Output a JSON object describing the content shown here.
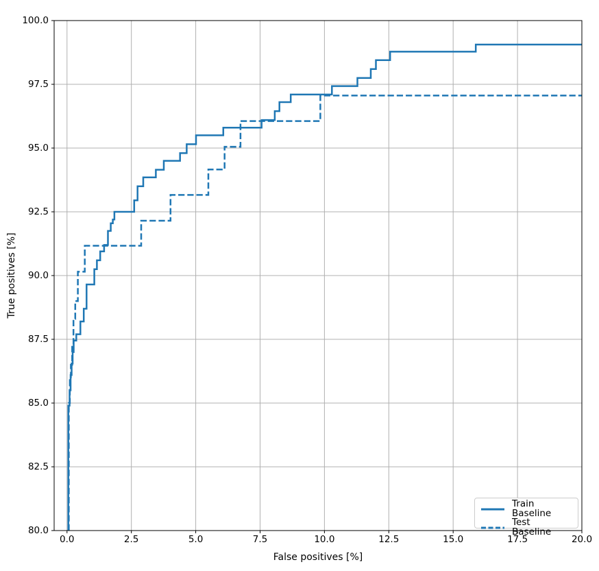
{
  "chart_data": {
    "type": "line",
    "subtype": "step-roc-curve",
    "title": "",
    "xlabel": "False positives [%]",
    "ylabel": "True positives [%]",
    "xlim": [
      -0.5,
      20
    ],
    "ylim": [
      80,
      100
    ],
    "grid": true,
    "grid_color": "#b0b0b0",
    "axis_color": "#000000",
    "line_color": "#1f77b4",
    "background_color": "#ffffff",
    "x_ticks": {
      "values": [
        0,
        2.5,
        5,
        7.5,
        10,
        12.5,
        15,
        17.5,
        20
      ],
      "labels": [
        "0.0",
        "2.5",
        "5.0",
        "7.5",
        "10.0",
        "12.5",
        "15.0",
        "17.5",
        "20.0"
      ]
    },
    "y_ticks": {
      "values": [
        80,
        82.5,
        85,
        87.5,
        90,
        92.5,
        95,
        97.5,
        100
      ],
      "labels": [
        "80.0",
        "82.5",
        "85.0",
        "87.5",
        "90.0",
        "92.5",
        "95.0",
        "97.5",
        "100.0"
      ]
    },
    "legend": {
      "position": "lower right",
      "border_color": "#cccccc"
    },
    "series": [
      {
        "name": "Train Baseline",
        "style": "solid",
        "color": "#1f77b4",
        "line_width": 2.5,
        "dash": null,
        "points": [
          [
            0.05,
            80.0
          ],
          [
            0.05,
            84.9
          ],
          [
            0.1,
            84.9
          ],
          [
            0.1,
            85.5
          ],
          [
            0.14,
            85.5
          ],
          [
            0.14,
            86.1
          ],
          [
            0.18,
            86.1
          ],
          [
            0.18,
            86.55
          ],
          [
            0.22,
            86.55
          ],
          [
            0.22,
            87.0
          ],
          [
            0.26,
            87.0
          ],
          [
            0.26,
            87.45
          ],
          [
            0.36,
            87.45
          ],
          [
            0.36,
            87.7
          ],
          [
            0.52,
            87.7
          ],
          [
            0.52,
            88.2
          ],
          [
            0.65,
            88.2
          ],
          [
            0.65,
            88.7
          ],
          [
            0.76,
            88.7
          ],
          [
            0.76,
            89.65
          ],
          [
            1.06,
            89.65
          ],
          [
            1.06,
            90.25
          ],
          [
            1.16,
            90.25
          ],
          [
            1.16,
            90.6
          ],
          [
            1.29,
            90.6
          ],
          [
            1.29,
            90.95
          ],
          [
            1.44,
            90.95
          ],
          [
            1.44,
            91.2
          ],
          [
            1.59,
            91.2
          ],
          [
            1.59,
            91.75
          ],
          [
            1.7,
            91.75
          ],
          [
            1.7,
            92.05
          ],
          [
            1.78,
            92.05
          ],
          [
            1.78,
            92.2
          ],
          [
            1.84,
            92.2
          ],
          [
            1.84,
            92.5
          ],
          [
            2.61,
            92.5
          ],
          [
            2.61,
            92.95
          ],
          [
            2.74,
            92.95
          ],
          [
            2.74,
            93.5
          ],
          [
            2.96,
            93.5
          ],
          [
            2.96,
            93.85
          ],
          [
            3.45,
            93.85
          ],
          [
            3.45,
            94.15
          ],
          [
            3.76,
            94.15
          ],
          [
            3.76,
            94.5
          ],
          [
            4.39,
            94.5
          ],
          [
            4.39,
            94.8
          ],
          [
            4.65,
            94.8
          ],
          [
            4.65,
            95.15
          ],
          [
            5.01,
            95.15
          ],
          [
            5.01,
            95.5
          ],
          [
            6.07,
            95.5
          ],
          [
            6.07,
            95.8
          ],
          [
            7.56,
            95.8
          ],
          [
            7.56,
            96.1
          ],
          [
            8.07,
            96.1
          ],
          [
            8.07,
            96.45
          ],
          [
            8.25,
            96.45
          ],
          [
            8.25,
            96.8
          ],
          [
            8.69,
            96.8
          ],
          [
            8.69,
            97.1
          ],
          [
            10.29,
            97.1
          ],
          [
            10.29,
            97.43
          ],
          [
            11.28,
            97.43
          ],
          [
            11.28,
            97.75
          ],
          [
            11.8,
            97.75
          ],
          [
            11.8,
            98.1
          ],
          [
            12.0,
            98.1
          ],
          [
            12.0,
            98.45
          ],
          [
            12.55,
            98.45
          ],
          [
            12.55,
            98.78
          ],
          [
            15.88,
            98.78
          ],
          [
            15.88,
            99.06
          ],
          [
            20,
            99.06
          ]
        ]
      },
      {
        "name": "Test Baseline",
        "style": "dashed",
        "color": "#1f77b4",
        "line_width": 2.5,
        "dash": [
          9.25,
          4
        ],
        "points": [
          [
            0.07,
            80.0
          ],
          [
            0.07,
            85.0
          ],
          [
            0.11,
            85.0
          ],
          [
            0.11,
            85.9
          ],
          [
            0.15,
            85.9
          ],
          [
            0.15,
            86.5
          ],
          [
            0.2,
            86.5
          ],
          [
            0.2,
            87.3
          ],
          [
            0.25,
            87.3
          ],
          [
            0.25,
            88.3
          ],
          [
            0.32,
            88.3
          ],
          [
            0.32,
            89.0
          ],
          [
            0.42,
            89.0
          ],
          [
            0.42,
            90.15
          ],
          [
            0.69,
            90.15
          ],
          [
            0.69,
            91.17
          ],
          [
            2.88,
            91.17
          ],
          [
            2.88,
            92.15
          ],
          [
            4.02,
            92.15
          ],
          [
            4.02,
            93.16
          ],
          [
            5.49,
            93.16
          ],
          [
            5.49,
            94.16
          ],
          [
            6.12,
            94.16
          ],
          [
            6.12,
            95.05
          ],
          [
            6.74,
            95.05
          ],
          [
            6.74,
            96.06
          ],
          [
            9.84,
            96.06
          ],
          [
            9.84,
            97.06
          ],
          [
            20,
            97.06
          ]
        ]
      }
    ]
  }
}
